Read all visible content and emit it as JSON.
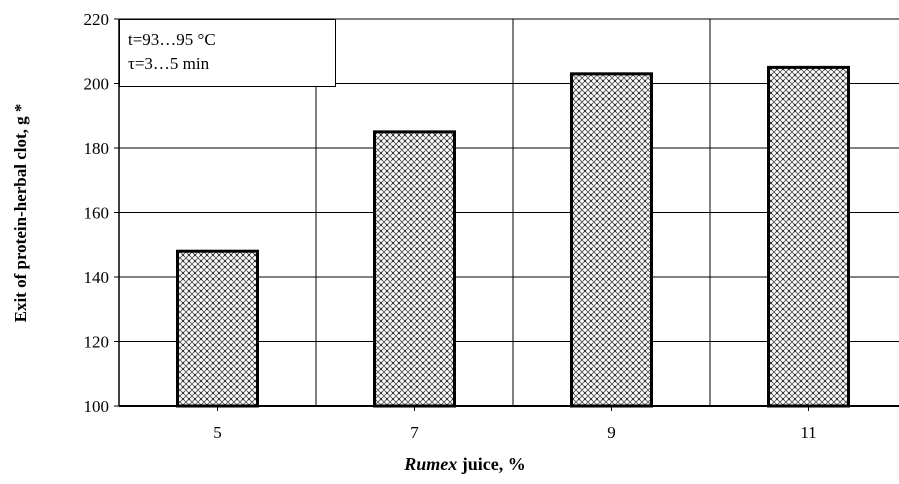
{
  "chart_data": {
    "type": "bar",
    "categories": [
      "5",
      "7",
      "9",
      "11"
    ],
    "values": [
      148,
      185,
      203,
      205
    ],
    "ylim": [
      100,
      220
    ],
    "yticks": [
      100,
      120,
      140,
      160,
      180,
      200,
      220
    ],
    "ylabel": "Exit of protein-herbal clot, g *",
    "xlabel_italic": "Rumex",
    "xlabel_rest": " juice, %",
    "annotations": [
      "t=93…95 °C",
      "τ=3…5 min"
    ],
    "grid": true,
    "bar_pattern": "crosshatch-dots"
  }
}
